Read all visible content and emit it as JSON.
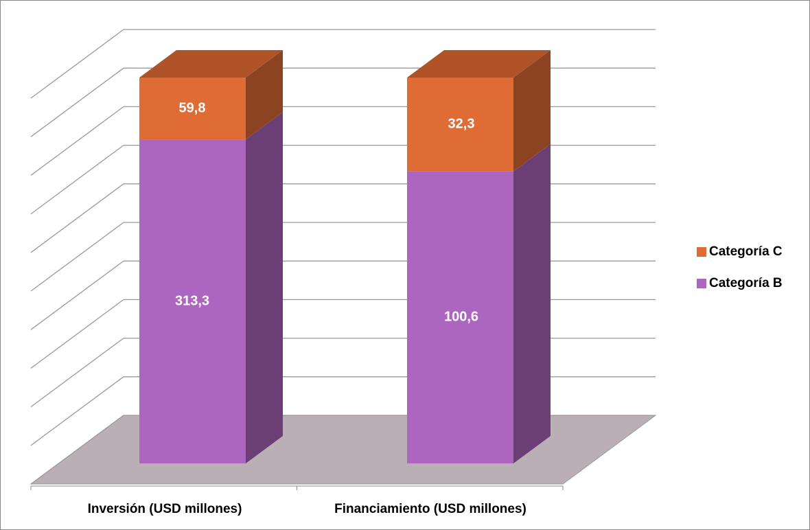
{
  "chart_data": {
    "type": "bar",
    "stacked": "percent",
    "categories": [
      "Inversión (USD millones)",
      "Financiamiento (USD millones)"
    ],
    "series": [
      {
        "name": "Categoría B",
        "color": "#ad66bf",
        "values": [
          313.3,
          100.6
        ],
        "value_labels": [
          "313,3",
          "100,6"
        ]
      },
      {
        "name": "Categoría C",
        "color": "#e06c35",
        "values": [
          59.8,
          32.3
        ],
        "value_labels": [
          "59,8",
          "32,3"
        ]
      }
    ],
    "ylim": [
      0,
      100
    ],
    "yticks": [
      0,
      10,
      20,
      30,
      40,
      50,
      60,
      70,
      80,
      90,
      100
    ],
    "grid": true,
    "legend": "right"
  }
}
